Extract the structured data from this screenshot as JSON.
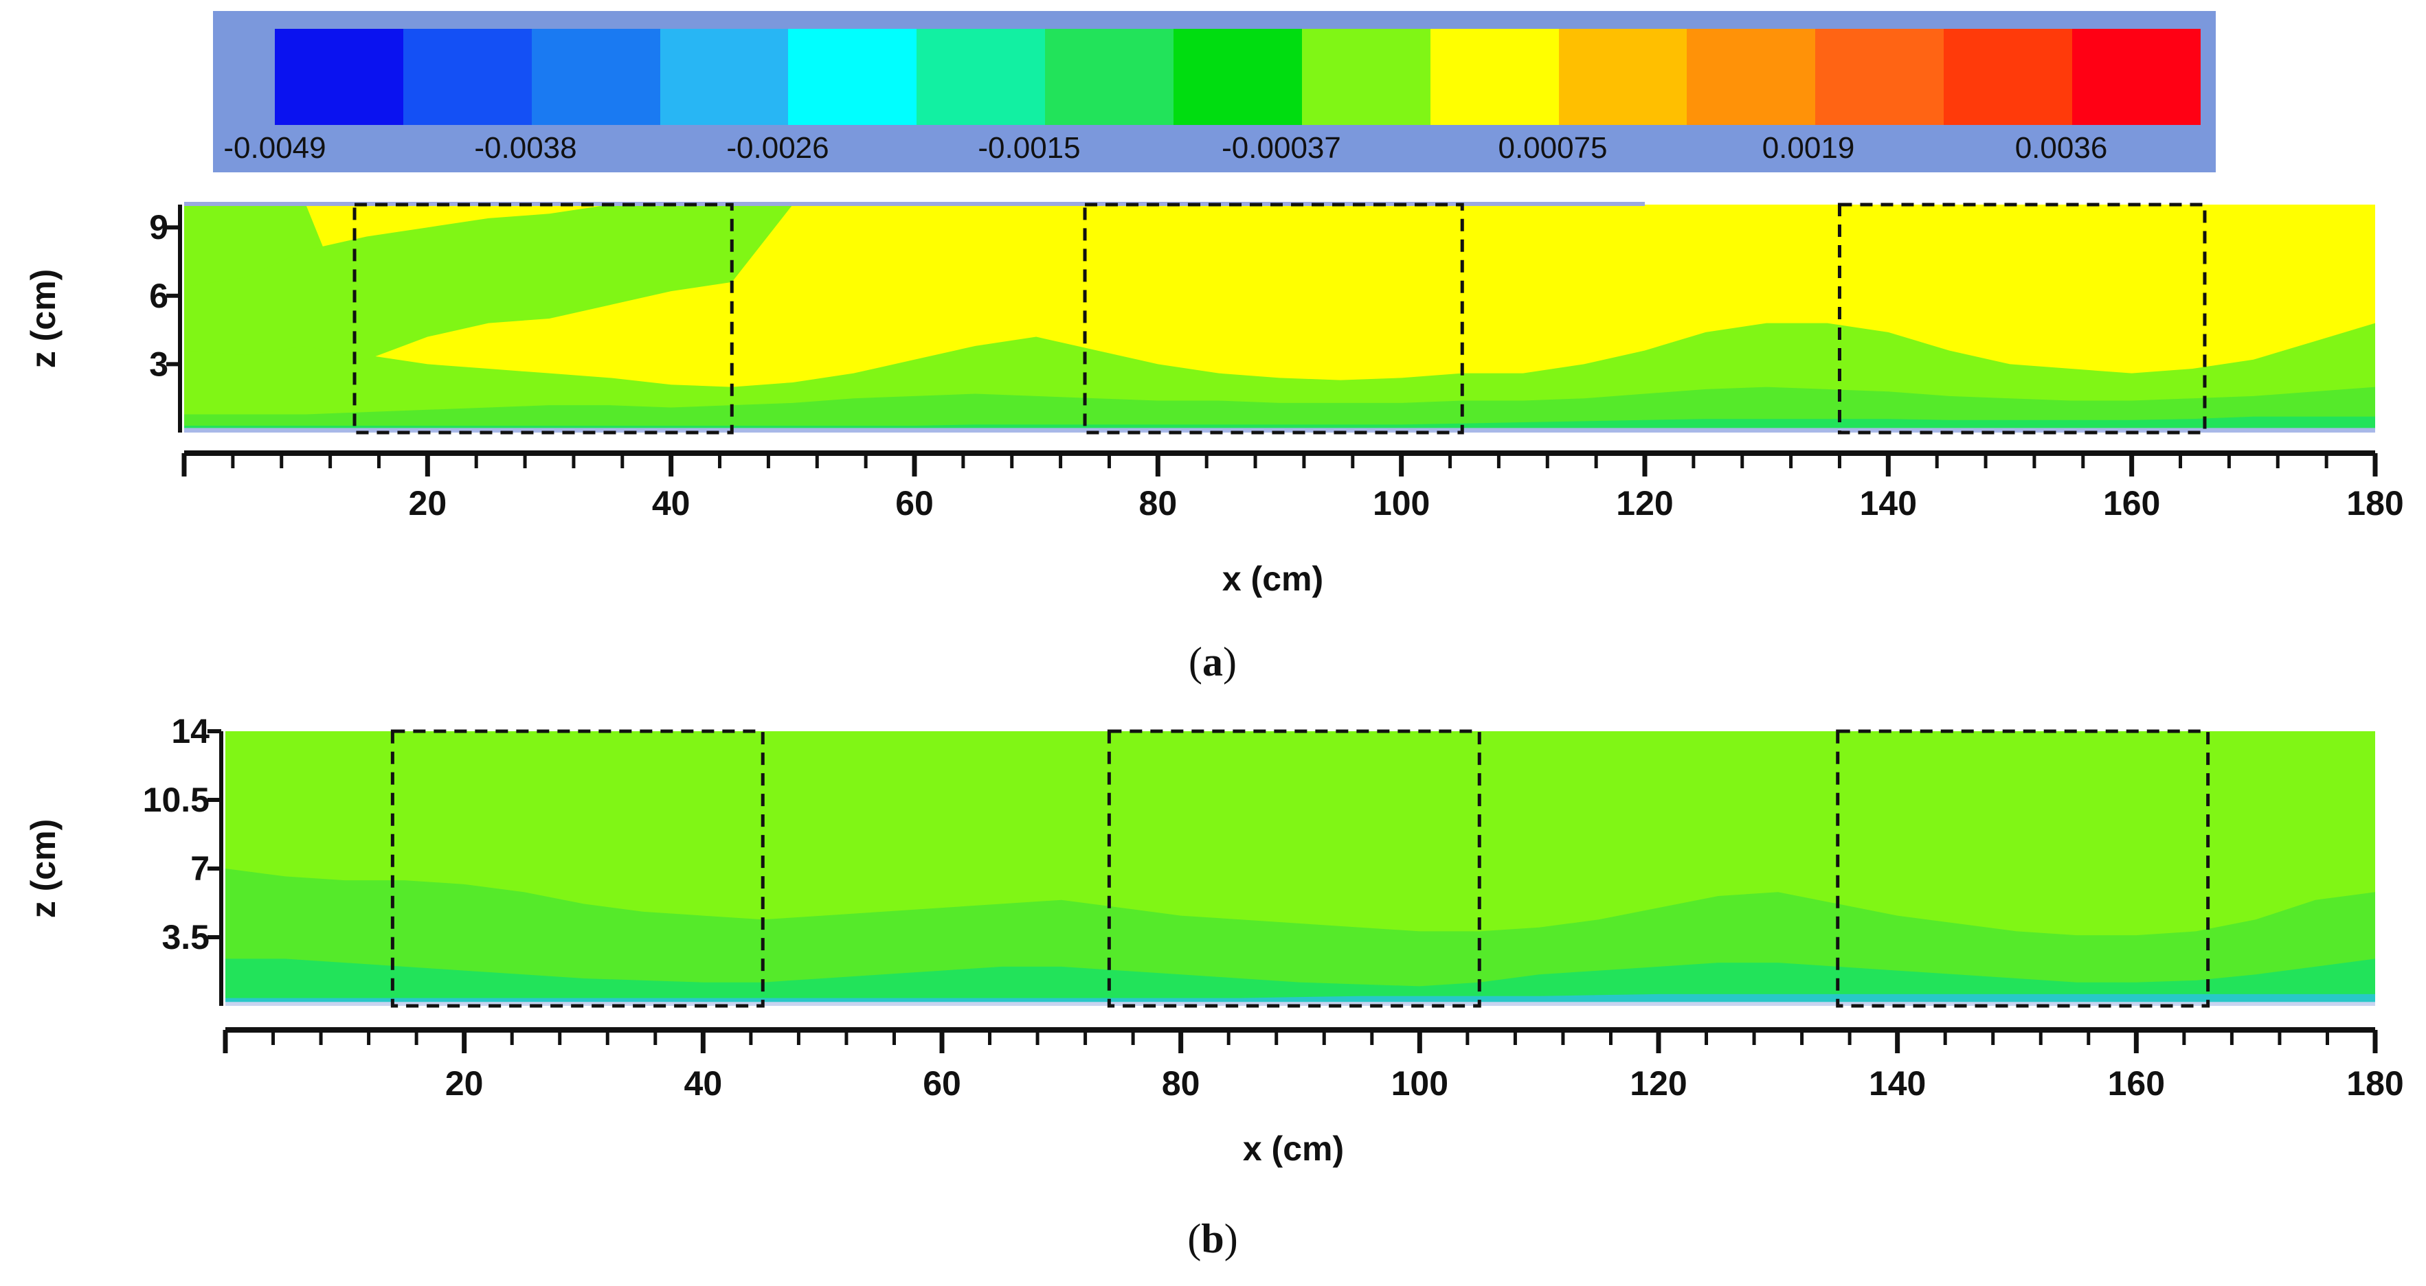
{
  "colorbar": {
    "colors": [
      "#0a12f0",
      "#1450f5",
      "#1a7af2",
      "#28b6f4",
      "#00ffff",
      "#12f0a2",
      "#22e35a",
      "#00dd10",
      "#80f615",
      "#ffff00",
      "#ffbf00",
      "#ff9208",
      "#ff6414",
      "#ff3a0a",
      "#ff0014"
    ],
    "labels": [
      "-0.0049",
      "-0.0038",
      "-0.0026",
      "-0.0015",
      "-0.00037",
      "0.00075",
      "0.0019",
      "0.0036"
    ]
  },
  "chart_data": [
    {
      "type": "heatmap",
      "panel": "a",
      "caption_letter": "a",
      "xlabel": "x (cm)",
      "ylabel": "z (cm)",
      "xlim": [
        0,
        180
      ],
      "ylim": [
        0,
        10
      ],
      "xticks": [
        20,
        40,
        60,
        80,
        100,
        120,
        140,
        160,
        180
      ],
      "yticks": [
        3,
        6,
        9
      ],
      "x_minor_step": 4,
      "boxes": [
        [
          14,
          45
        ],
        [
          74,
          105
        ],
        [
          136,
          166
        ]
      ],
      "contours": {
        "x": [
          0,
          5,
          10,
          15,
          20,
          25,
          30,
          35,
          40,
          45,
          50,
          55,
          60,
          65,
          70,
          75,
          80,
          85,
          90,
          95,
          100,
          105,
          110,
          115,
          120,
          125,
          130,
          135,
          140,
          145,
          150,
          155,
          160,
          165,
          170,
          175,
          180
        ],
        "yellow_band_top": [
          6.4,
          6.8,
          8.0,
          8.6,
          9.0,
          9.4,
          9.6,
          10,
          10,
          10,
          10,
          10,
          10,
          10,
          10,
          10,
          10,
          10,
          10,
          10,
          10,
          10,
          10,
          10,
          10,
          10,
          10,
          10,
          10,
          10,
          10,
          10,
          10,
          10,
          10,
          10,
          10
        ],
        "yellow_band_bottom": [
          3.6,
          3.4,
          3.8,
          3.2,
          4.2,
          4.8,
          5.0,
          5.6,
          6.2,
          6.6,
          10,
          10,
          10,
          10,
          10,
          10,
          10,
          10,
          10,
          10,
          10,
          10,
          10,
          10,
          10,
          10,
          10,
          10,
          10,
          10,
          10,
          10,
          10,
          10,
          10,
          10,
          10
        ],
        "yellow_lower": [
          10,
          10,
          10,
          3.4,
          3.0,
          2.8,
          2.6,
          2.4,
          2.1,
          2.0,
          2.2,
          2.6,
          3.2,
          3.8,
          4.2,
          3.6,
          3.0,
          2.6,
          2.4,
          2.3,
          2.4,
          2.6,
          2.6,
          3.0,
          3.6,
          4.4,
          4.8,
          4.8,
          4.4,
          3.6,
          3.0,
          2.8,
          2.6,
          2.8,
          3.2,
          4.0,
          4.8
        ],
        "light_green_lower": [
          0.8,
          0.8,
          0.8,
          0.9,
          1.0,
          1.1,
          1.2,
          1.2,
          1.1,
          1.2,
          1.3,
          1.5,
          1.6,
          1.7,
          1.6,
          1.5,
          1.4,
          1.4,
          1.3,
          1.3,
          1.3,
          1.4,
          1.4,
          1.5,
          1.7,
          1.9,
          2.0,
          1.9,
          1.8,
          1.6,
          1.5,
          1.4,
          1.4,
          1.5,
          1.6,
          1.8,
          2.0
        ],
        "green_lower": [
          0.3,
          0.3,
          0.3,
          0.3,
          0.3,
          0.3,
          0.3,
          0.3,
          0.3,
          0.3,
          0.3,
          0.3,
          0.3,
          0.35,
          0.35,
          0.35,
          0.35,
          0.35,
          0.35,
          0.35,
          0.35,
          0.4,
          0.45,
          0.5,
          0.55,
          0.6,
          0.6,
          0.6,
          0.6,
          0.55,
          0.55,
          0.55,
          0.55,
          0.6,
          0.7,
          0.7,
          0.7
        ]
      }
    },
    {
      "type": "heatmap",
      "panel": "b",
      "caption_letter": "b",
      "xlabel": "x (cm)",
      "ylabel": "z (cm)",
      "xlim": [
        0,
        180
      ],
      "ylim": [
        0,
        14
      ],
      "xticks": [
        20,
        40,
        60,
        80,
        100,
        120,
        140,
        160,
        180
      ],
      "yticks": [
        3.5,
        7,
        10.5,
        14
      ],
      "ytick_labels": [
        "3.5",
        "7",
        "10.5",
        "14"
      ],
      "x_minor_step": 4,
      "boxes": [
        [
          14,
          45
        ],
        [
          74,
          105
        ],
        [
          135,
          166
        ]
      ],
      "contours": {
        "x": [
          0,
          5,
          10,
          15,
          20,
          25,
          30,
          35,
          40,
          45,
          50,
          55,
          60,
          65,
          70,
          75,
          80,
          85,
          90,
          95,
          100,
          105,
          110,
          115,
          120,
          125,
          130,
          135,
          140,
          145,
          150,
          155,
          160,
          165,
          170,
          175,
          180
        ],
        "green_upper": [
          7.0,
          6.6,
          6.4,
          6.4,
          6.2,
          5.8,
          5.2,
          4.8,
          4.6,
          4.4,
          4.6,
          4.8,
          5.0,
          5.2,
          5.4,
          5.0,
          4.6,
          4.4,
          4.2,
          4.0,
          3.8,
          3.8,
          4.0,
          4.4,
          5.0,
          5.6,
          5.8,
          5.2,
          4.6,
          4.2,
          3.8,
          3.6,
          3.6,
          3.8,
          4.4,
          5.4,
          5.8
        ],
        "mid_green_lower": [
          2.4,
          2.4,
          2.2,
          2.0,
          1.8,
          1.6,
          1.4,
          1.3,
          1.2,
          1.2,
          1.4,
          1.6,
          1.8,
          2.0,
          2.0,
          1.8,
          1.6,
          1.4,
          1.2,
          1.1,
          1.0,
          1.2,
          1.6,
          1.8,
          2.0,
          2.2,
          2.2,
          2.0,
          1.8,
          1.6,
          1.4,
          1.2,
          1.2,
          1.3,
          1.6,
          2.0,
          2.4
        ],
        "cyan_lower": [
          0.4,
          0.4,
          0.4,
          0.4,
          0.4,
          0.4,
          0.4,
          0.4,
          0.4,
          0.4,
          0.4,
          0.4,
          0.4,
          0.4,
          0.4,
          0.4,
          0.4,
          0.4,
          0.45,
          0.5,
          0.5,
          0.5,
          0.5,
          0.55,
          0.6,
          0.6,
          0.6,
          0.6,
          0.6,
          0.6,
          0.6,
          0.6,
          0.6,
          0.6,
          0.6,
          0.6,
          0.6
        ]
      }
    }
  ]
}
